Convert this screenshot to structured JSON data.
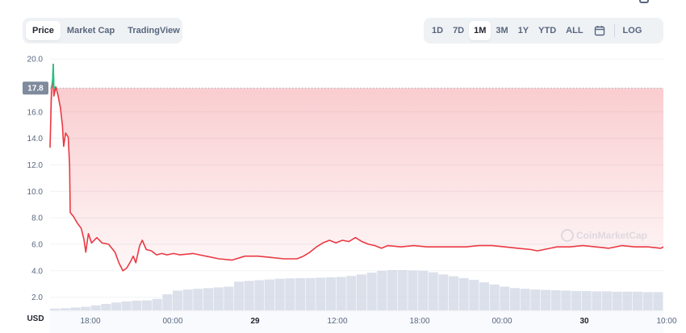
{
  "tabs_left": [
    "Price",
    "Market Cap",
    "TradingView"
  ],
  "active_left": 0,
  "tabs_right": [
    "1D",
    "7D",
    "1M",
    "3M",
    "1Y",
    "YTD",
    "ALL"
  ],
  "active_right": 2,
  "log_label": "LOG",
  "calendar_icon": "calendar-icon",
  "colors": {
    "line": "#ea3943",
    "up": "#16c784",
    "area": "#ea3943",
    "volume": "#cfd6e4",
    "marker": "#808a9d"
  },
  "chart_data": {
    "type": "line",
    "title": "",
    "xlabel": "",
    "ylabel": "",
    "currency_label": "USD",
    "ylim": [
      1.0,
      20.8
    ],
    "yticks": [
      "20.0",
      "16.0",
      "14.0",
      "12.0",
      "10.0",
      "8.0",
      "6.0",
      "4.0",
      "2.0"
    ],
    "xlim": [
      0,
      66
    ],
    "xticks": [
      {
        "x": 4,
        "label": "18:00",
        "bold": false
      },
      {
        "x": 10,
        "label": "00:00",
        "bold": false
      },
      {
        "x": 16,
        "label": "29",
        "bold": true
      },
      {
        "x": 22,
        "label": "12:00",
        "bold": false
      },
      {
        "x": 28,
        "label": "18:00",
        "bold": false
      },
      {
        "x": 34,
        "label": "00:00",
        "bold": false
      },
      {
        "x": 40,
        "label": "30",
        "bold": true
      },
      {
        "x": 46,
        "label": "10:00",
        "bold": false
      }
    ],
    "reference_value": 17.8,
    "reference_label": "17.8",
    "watermark": "CoinMarketCap",
    "series": [
      {
        "values": [
          [
            0.0,
            13.3
          ],
          [
            0.1,
            17.0
          ],
          [
            0.2,
            18.4
          ],
          [
            0.25,
            19.6
          ],
          [
            0.3,
            17.2
          ],
          [
            0.45,
            17.9
          ],
          [
            0.6,
            17.3
          ],
          [
            0.8,
            16.3
          ],
          [
            0.95,
            15.0
          ],
          [
            1.05,
            13.4
          ],
          [
            1.2,
            14.4
          ],
          [
            1.4,
            14.1
          ],
          [
            1.5,
            12.0
          ],
          [
            1.55,
            8.4
          ],
          [
            1.8,
            8.1
          ],
          [
            2.1,
            7.6
          ],
          [
            2.4,
            7.2
          ],
          [
            2.6,
            6.4
          ],
          [
            2.75,
            5.4
          ],
          [
            2.95,
            6.8
          ],
          [
            3.2,
            6.1
          ],
          [
            3.6,
            6.5
          ],
          [
            4.0,
            6.1
          ],
          [
            4.5,
            6.0
          ],
          [
            5.0,
            5.4
          ],
          [
            5.3,
            4.6
          ],
          [
            5.6,
            4.0
          ],
          [
            5.9,
            4.2
          ],
          [
            6.2,
            4.7
          ],
          [
            6.4,
            5.1
          ],
          [
            6.6,
            4.6
          ],
          [
            6.9,
            5.9
          ],
          [
            7.1,
            6.3
          ],
          [
            7.4,
            5.6
          ],
          [
            7.8,
            5.5
          ],
          [
            8.2,
            5.2
          ],
          [
            8.6,
            5.3
          ],
          [
            9.0,
            5.2
          ],
          [
            9.5,
            5.3
          ],
          [
            10.0,
            5.2
          ],
          [
            11.0,
            5.3
          ],
          [
            12.0,
            5.1
          ],
          [
            13.0,
            4.9
          ],
          [
            14.0,
            4.8
          ],
          [
            15.0,
            5.1
          ],
          [
            16.0,
            5.1
          ],
          [
            17.0,
            5.0
          ],
          [
            18.0,
            4.9
          ],
          [
            19.0,
            4.9
          ],
          [
            19.5,
            5.1
          ],
          [
            20.0,
            5.4
          ],
          [
            20.5,
            5.8
          ],
          [
            21.0,
            6.1
          ],
          [
            21.5,
            6.3
          ],
          [
            22.0,
            6.1
          ],
          [
            22.5,
            6.3
          ],
          [
            23.0,
            6.2
          ],
          [
            23.5,
            6.5
          ],
          [
            24.0,
            6.2
          ],
          [
            24.5,
            6.0
          ],
          [
            25.0,
            5.9
          ],
          [
            25.5,
            5.7
          ],
          [
            26.0,
            5.9
          ],
          [
            27.0,
            5.8
          ],
          [
            28.0,
            5.9
          ],
          [
            29.0,
            5.8
          ],
          [
            30.0,
            5.8
          ],
          [
            31.0,
            5.8
          ],
          [
            32.0,
            5.8
          ],
          [
            33.0,
            5.9
          ],
          [
            34.0,
            5.9
          ],
          [
            35.0,
            5.8
          ],
          [
            36.0,
            5.7
          ],
          [
            37.0,
            5.6
          ],
          [
            37.5,
            5.5
          ],
          [
            38.0,
            5.6
          ],
          [
            38.5,
            5.7
          ],
          [
            39.0,
            5.8
          ],
          [
            40.0,
            5.8
          ],
          [
            41.0,
            5.9
          ],
          [
            42.0,
            5.8
          ],
          [
            43.0,
            5.7
          ],
          [
            44.0,
            5.9
          ],
          [
            45.0,
            5.8
          ],
          [
            46.0,
            5.8
          ],
          [
            47.0,
            5.7
          ],
          [
            47.2,
            5.8
          ]
        ]
      }
    ],
    "volume": [
      0.05,
      0.06,
      0.08,
      0.1,
      0.14,
      0.18,
      0.22,
      0.25,
      0.27,
      0.28,
      0.32,
      0.45,
      0.55,
      0.58,
      0.6,
      0.62,
      0.64,
      0.66,
      0.8,
      0.82,
      0.84,
      0.86,
      0.88,
      0.89,
      0.9,
      0.9,
      0.91,
      0.92,
      0.93,
      0.96,
      1.0,
      1.05,
      1.1,
      1.12,
      1.12,
      1.11,
      1.1,
      1.06,
      1.0,
      0.95,
      0.9,
      0.85,
      0.78,
      0.72,
      0.66,
      0.62,
      0.6,
      0.58,
      0.57,
      0.56,
      0.55,
      0.54,
      0.54,
      0.53,
      0.53,
      0.52,
      0.52,
      0.52,
      0.51,
      0.51
    ]
  }
}
